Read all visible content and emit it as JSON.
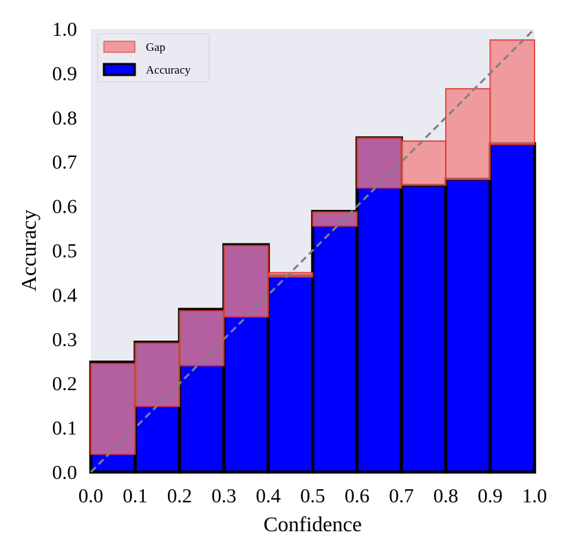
{
  "chart_data": {
    "type": "bar",
    "title": "",
    "xlabel": "Confidence",
    "ylabel": "Accuracy",
    "xlim": [
      0.0,
      1.0
    ],
    "ylim": [
      0.0,
      1.0
    ],
    "x_ticks": [
      "0.0",
      "0.1",
      "0.2",
      "0.3",
      "0.4",
      "0.5",
      "0.6",
      "0.7",
      "0.8",
      "0.9",
      "1.0"
    ],
    "y_ticks": [
      "0.0",
      "0.1",
      "0.2",
      "0.3",
      "0.4",
      "0.5",
      "0.6",
      "0.7",
      "0.8",
      "0.9",
      "1.0"
    ],
    "bin_edges": [
      0.0,
      0.1,
      0.2,
      0.3,
      0.4,
      0.5,
      0.6,
      0.7,
      0.8,
      0.9,
      1.0
    ],
    "series": [
      {
        "name": "Accuracy",
        "values": [
          0.248,
          0.293,
          0.367,
          0.513,
          0.443,
          0.588,
          0.754,
          0.647,
          0.661,
          0.741
        ]
      },
      {
        "name": "Gap",
        "values": [
          0.205,
          0.143,
          0.124,
          0.161,
          0.01,
          0.032,
          0.113,
          0.1,
          0.205,
          0.236
        ],
        "lower": [
          0.04,
          0.148,
          0.24,
          0.35,
          0.44,
          0.555,
          0.641,
          0.647,
          0.66,
          0.739
        ],
        "upper": [
          0.245,
          0.291,
          0.364,
          0.511,
          0.45,
          0.587,
          0.754,
          0.747,
          0.865,
          0.975
        ]
      }
    ],
    "legend": {
      "placement": "top-left",
      "entries": [
        "Gap",
        "Accuracy"
      ]
    },
    "reference_line": "diagonal",
    "grid": false,
    "colors": {
      "background": "#eaeaf2",
      "accuracy_fill": "#0000ff",
      "accuracy_edge": "#000000",
      "gap_fill": "#f08080",
      "gap_edge": "#e0302c",
      "diagonal": "#808080"
    }
  }
}
